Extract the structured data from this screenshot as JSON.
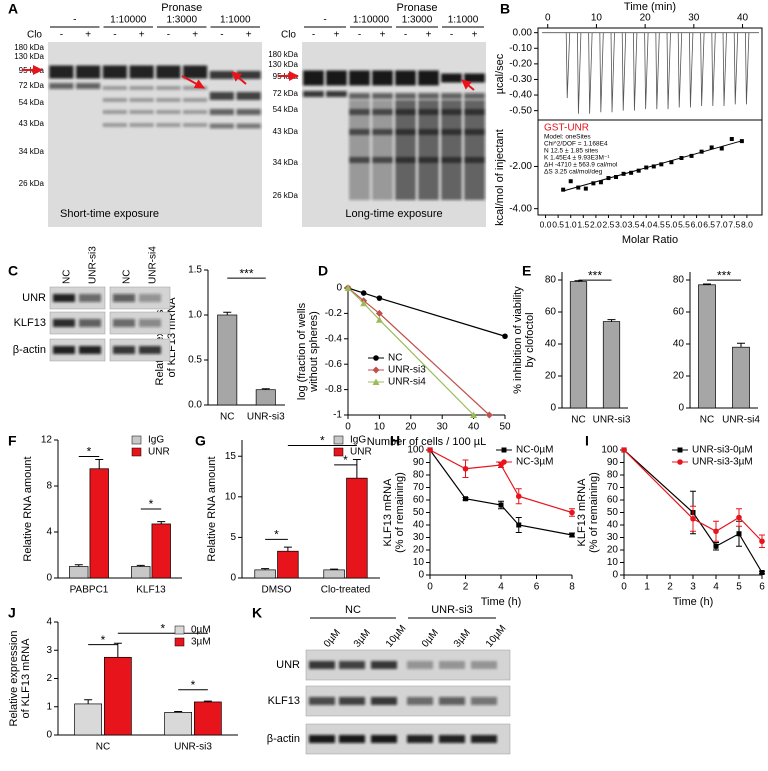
{
  "A": {
    "label": "A",
    "blots": [
      {
        "pronase": "Pronase",
        "doses": [
          "-",
          "1:10000",
          "1:3000",
          "1:1000"
        ],
        "clo_label": "Clo",
        "clo": [
          "-",
          "+",
          "-",
          "+",
          "-",
          "+",
          "-",
          "+"
        ],
        "markers": [
          "180 kDa",
          "130 kDa",
          "95 kDa",
          "72 kDa",
          "54 kDa",
          "43 kDa",
          "34 kDa",
          "26 kDa"
        ],
        "caption": "Short-time exposure"
      },
      {
        "pronase": "Pronase",
        "doses": [
          "-",
          "1:10000",
          "1:3000",
          "1:1000"
        ],
        "clo_label": "Clo",
        "clo": [
          "-",
          "+",
          "-",
          "+",
          "-",
          "+",
          "-",
          "+"
        ],
        "markers": [
          "180 kDa",
          "130 kDa",
          "95 kDa",
          "72 kDa",
          "54 kDa",
          "43 kDa",
          "34 kDa",
          "26 kDa"
        ],
        "caption": "Long-time exposure"
      }
    ]
  },
  "B": {
    "label": "B",
    "thermogram": {
      "xlabel": "Time (min)",
      "xlim": [
        -2,
        44
      ],
      "xticks": [
        0,
        10,
        20,
        30,
        40
      ],
      "ylabel": "µcal/sec",
      "ylim": [
        -0.56,
        0.03
      ],
      "yticks": [
        {
          "value": 0,
          "label": "0.00"
        },
        {
          "value": -0.1,
          "label": "-0.10"
        },
        {
          "value": -0.2,
          "label": "-0.20"
        },
        {
          "value": -0.3,
          "label": "-0.30"
        },
        {
          "value": -0.4,
          "label": "-0.40"
        },
        {
          "value": -0.5,
          "label": "-0.50"
        }
      ],
      "injections": {
        "x": [
          4,
          6.3,
          8.6,
          10.9,
          13.2,
          15.5,
          17.8,
          20.1,
          22.4,
          24.7,
          27,
          29.3,
          31.6,
          33.9,
          36.2,
          38.5,
          40.8
        ],
        "values": [
          -0.42,
          -0.52,
          -0.52,
          -0.51,
          -0.51,
          -0.5,
          -0.5,
          -0.49,
          -0.49,
          -0.49,
          -0.48,
          -0.48,
          -0.47,
          -0.47,
          -0.47,
          -0.46,
          -0.46
        ]
      }
    },
    "binding": {
      "type": "scatter",
      "xlabel": "Molar Ratio",
      "xlim": [
        -0.3,
        8.6
      ],
      "xticks": [
        {
          "value": 0,
          "label": "0.0"
        },
        0.5,
        {
          "value": 1,
          "label": "1.0"
        },
        1.5,
        {
          "value": 2,
          "label": "2.0"
        },
        2.5,
        {
          "value": 3,
          "label": "3.0"
        },
        3.5,
        {
          "value": 4,
          "label": "4.0"
        },
        4.5,
        {
          "value": 5,
          "label": "5.0"
        },
        5.5,
        {
          "value": 6,
          "label": "6.0"
        },
        6.5,
        {
          "value": 7,
          "label": "7.0"
        },
        7.5,
        {
          "value": 8,
          "label": "8.0"
        }
      ],
      "ylabel": "kcal/mol of injectant",
      "ylim": [
        -4.3,
        0.2
      ],
      "yticks": [
        {
          "value": -2,
          "label": "-2.00"
        },
        {
          "value": -4,
          "label": "-4.00"
        }
      ],
      "x": [
        0.7,
        1.0,
        1.3,
        1.6,
        1.9,
        2.2,
        2.5,
        2.8,
        3.1,
        3.4,
        3.7,
        4.0,
        4.3,
        4.6,
        5.0,
        5.4,
        5.8,
        6.2,
        6.6,
        7.0,
        7.4,
        7.8
      ],
      "values": [
        -3.1,
        -2.7,
        -3.0,
        -3.05,
        -2.8,
        -2.75,
        -2.55,
        -2.5,
        -2.35,
        -2.3,
        -2.2,
        -2.05,
        -2.0,
        -1.9,
        -1.8,
        -1.6,
        -1.5,
        -1.3,
        -1.1,
        -1.15,
        -0.7,
        -0.8
      ],
      "legend_title": "GST-UNR",
      "legend_lines": [
        "Model: oneSites",
        "Chi^2/DOF = 1.168E4",
        "N  12.5 ± 1.85 sites",
        "K  1.45E4 ± 9.93E3M⁻¹",
        "ΔH  -4710 ± 563.9 cal/mol",
        "ΔS  3.25 cal/mol/deg"
      ]
    }
  },
  "C": {
    "label": "C",
    "blot": {
      "lanes": [
        "NC",
        "UNR-si3",
        "NC",
        "UNR-si4"
      ],
      "rows": [
        "UNR",
        "KLF13",
        "β-actin"
      ]
    },
    "chart": {
      "type": "bar",
      "ylabel": [
        "Relative expression",
        "of KLF13 mRNA"
      ],
      "categories": [
        "NC",
        "UNR-si3"
      ],
      "values": [
        1.0,
        0.17
      ],
      "errors": [
        0.03,
        0.01
      ],
      "color": "#a6a6a6",
      "ylim": [
        0,
        1.5
      ],
      "yticks": [
        {
          "value": 0,
          "label": "0.0"
        },
        0.5,
        {
          "value": 1,
          "label": "1.0"
        },
        1.5
      ],
      "significance": [
        "***"
      ]
    }
  },
  "D": {
    "label": "D",
    "type": "line",
    "ylabel": [
      "log (fraction of wells",
      "without spheres)"
    ],
    "xlabel": "Number of cells / 100 µL",
    "xlim": [
      0,
      50
    ],
    "xticks": [
      0,
      10,
      20,
      30,
      40,
      50
    ],
    "ylim": [
      -1,
      0
    ],
    "yticks": [
      0,
      -0.2,
      -0.4,
      -0.6,
      -0.8,
      -1
    ],
    "series": [
      {
        "name": "NC",
        "color": "#000000",
        "marker": "circle",
        "x": [
          0,
          5,
          10,
          50
        ],
        "values": [
          0,
          -0.04,
          -0.08,
          -0.38
        ]
      },
      {
        "name": "UNR-si3",
        "color": "#c0504d",
        "marker": "diamond",
        "x": [
          0,
          5,
          10,
          45
        ],
        "values": [
          0,
          -0.1,
          -0.2,
          -1
        ]
      },
      {
        "name": "UNR-si4",
        "color": "#9bbb59",
        "marker": "triangle",
        "x": [
          0,
          5,
          10,
          40
        ],
        "values": [
          0,
          -0.12,
          -0.25,
          -1
        ]
      }
    ]
  },
  "E": {
    "label": "E",
    "charts": [
      {
        "type": "bar",
        "ylabel": [
          "% inhibition of viability",
          "by clofoctol"
        ],
        "categories": [
          "NC",
          "UNR-si3"
        ],
        "values": [
          79,
          54
        ],
        "errors": [
          0.5,
          1.2
        ],
        "color": "#a6a6a6",
        "ylim": [
          0,
          85
        ],
        "yticks": [
          0,
          20,
          40,
          60,
          80
        ],
        "significance": [
          "***"
        ]
      },
      {
        "type": "bar",
        "categories": [
          "NC",
          "UNR-si4"
        ],
        "values": [
          77,
          38
        ],
        "errors": [
          0.5,
          2.5
        ],
        "color": "#a6a6a6",
        "ylim": [
          0,
          85
        ],
        "yticks": [
          0,
          20,
          40,
          60,
          80
        ],
        "significance": [
          "***"
        ]
      }
    ]
  },
  "F": {
    "label": "F",
    "type": "bar",
    "ylabel": "Relative RNA amount",
    "categories": [
      "PABPC1",
      "KLF13"
    ],
    "ylim": [
      0,
      12
    ],
    "yticks": [
      0,
      4,
      8,
      12
    ],
    "series": [
      {
        "name": "IgG",
        "color": "#c8c8c8",
        "values": [
          1,
          1
        ],
        "errors": [
          0.15,
          0.1
        ]
      },
      {
        "name": "UNR",
        "color": "#e8141b",
        "values": [
          9.5,
          4.7
        ],
        "errors": [
          0.8,
          0.2
        ]
      }
    ],
    "significance": [
      "*",
      "*"
    ]
  },
  "G": {
    "label": "G",
    "type": "bar",
    "ylabel": "Relative RNA amount",
    "categories": [
      "DMSO",
      "Clo-treated"
    ],
    "ylim": [
      0,
      17
    ],
    "yticks": [
      0,
      5,
      10,
      15
    ],
    "series": [
      {
        "name": "IgG",
        "color": "#c8c8c8",
        "values": [
          1,
          1
        ],
        "errors": [
          0.15,
          0.1
        ]
      },
      {
        "name": "UNR",
        "color": "#e8141b",
        "values": [
          3.3,
          12.3
        ],
        "errors": [
          0.5,
          2.3
        ]
      }
    ],
    "significance": [
      "*",
      "*",
      "*"
    ]
  },
  "H": {
    "label": "H",
    "type": "line",
    "ylabel": [
      "KLF13 mRNA",
      "(% of remaining)"
    ],
    "xlabel": "Time (h)",
    "xlim": [
      0,
      8
    ],
    "xticks": [
      0,
      2,
      4,
      6,
      8
    ],
    "ylim": [
      0,
      100
    ],
    "yticks": [
      0,
      10,
      20,
      30,
      40,
      50,
      60,
      70,
      80,
      90,
      100
    ],
    "series": [
      {
        "name": "NC-0µM",
        "color": "#000000",
        "marker": "square",
        "x": [
          0,
          2,
          4,
          5,
          8
        ],
        "values": [
          100,
          61,
          56,
          40,
          32
        ],
        "errors": [
          0,
          1,
          3,
          6,
          1.5
        ]
      },
      {
        "name": "NC-3µM",
        "color": "#e8141b",
        "marker": "circle",
        "x": [
          0,
          2,
          4,
          5,
          8
        ],
        "values": [
          100,
          85,
          88,
          63,
          50
        ],
        "errors": [
          0,
          7,
          2,
          6,
          3
        ]
      }
    ]
  },
  "I": {
    "label": "I",
    "type": "line",
    "ylabel": [
      "KLF13 mRNA",
      "(% of remaining)"
    ],
    "xlabel": "Time (h)",
    "xlim": [
      0,
      6
    ],
    "xticks": [
      0,
      1,
      2,
      3,
      4,
      5,
      6
    ],
    "ylim": [
      0,
      100
    ],
    "yticks": [
      0,
      10,
      20,
      30,
      40,
      50,
      60,
      70,
      80,
      90,
      100
    ],
    "series": [
      {
        "name": "UNR-si3-0µM",
        "color": "#000000",
        "marker": "square",
        "x": [
          0,
          3,
          4,
          5,
          6
        ],
        "values": [
          100,
          50,
          23,
          33,
          2
        ],
        "errors": [
          0,
          17,
          3,
          10,
          1
        ]
      },
      {
        "name": "UNR-si3-3µM",
        "color": "#e8141b",
        "marker": "circle",
        "x": [
          0,
          3,
          4,
          5,
          6
        ],
        "values": [
          100,
          45,
          35,
          46,
          27
        ],
        "errors": [
          0,
          10,
          8,
          7,
          5
        ]
      }
    ]
  },
  "J": {
    "label": "J",
    "type": "bar",
    "ylabel": [
      "Relative expression",
      "of KLF13 mRNA"
    ],
    "categories": [
      "NC",
      "UNR-si3"
    ],
    "ylim": [
      0,
      4
    ],
    "yticks": [
      0,
      1,
      2,
      3,
      4
    ],
    "series": [
      {
        "name": "0µM",
        "color": "#d9d9d9",
        "values": [
          1.1,
          0.8
        ],
        "errors": [
          0.15,
          0.03
        ]
      },
      {
        "name": "3µM",
        "color": "#e8141b",
        "values": [
          2.75,
          1.17
        ],
        "errors": [
          0.5,
          0.03
        ]
      }
    ],
    "significance": [
      "*",
      "*",
      "*"
    ]
  },
  "K": {
    "label": "K",
    "groups": [
      "NC",
      "UNR-si3"
    ],
    "lanes": [
      "0µM",
      "3µM",
      "10µM",
      "0µM",
      "3µM",
      "10µM"
    ],
    "rows": [
      "UNR",
      "KLF13",
      "β-actin"
    ]
  }
}
